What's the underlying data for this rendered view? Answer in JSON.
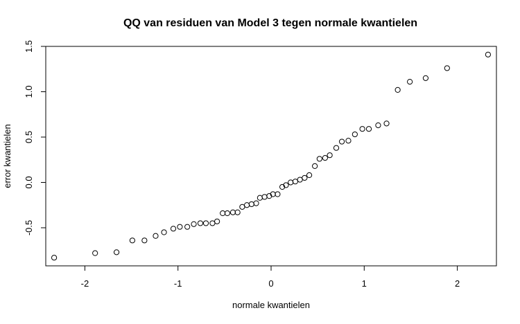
{
  "chart_data": {
    "type": "scatter",
    "title": "QQ van residuen van Model 3 tegen normale kwantielen",
    "xlabel": "normale kwantielen",
    "ylabel": "error kwantielen",
    "xlim": [
      -2.42,
      2.42
    ],
    "ylim": [
      -0.92,
      1.5
    ],
    "xticks": [
      -2,
      -1,
      0,
      1,
      2
    ],
    "yticks": [
      -0.5,
      0.0,
      0.5,
      1.0,
      1.5
    ],
    "xtick_labels": [
      "-2",
      "-1",
      "0",
      "1",
      "2"
    ],
    "ytick_labels": [
      "-0.5",
      "0.0",
      "0.5",
      "1.0",
      "1.5"
    ],
    "grid": false,
    "points": [
      {
        "x": -2.33,
        "y": -0.83
      },
      {
        "x": -1.89,
        "y": -0.78
      },
      {
        "x": -1.66,
        "y": -0.77
      },
      {
        "x": -1.49,
        "y": -0.64
      },
      {
        "x": -1.36,
        "y": -0.64
      },
      {
        "x": -1.24,
        "y": -0.59
      },
      {
        "x": -1.15,
        "y": -0.55
      },
      {
        "x": -1.05,
        "y": -0.51
      },
      {
        "x": -0.98,
        "y": -0.49
      },
      {
        "x": -0.9,
        "y": -0.49
      },
      {
        "x": -0.83,
        "y": -0.46
      },
      {
        "x": -0.76,
        "y": -0.45
      },
      {
        "x": -0.7,
        "y": -0.45
      },
      {
        "x": -0.63,
        "y": -0.45
      },
      {
        "x": -0.58,
        "y": -0.43
      },
      {
        "x": -0.52,
        "y": -0.34
      },
      {
        "x": -0.47,
        "y": -0.34
      },
      {
        "x": -0.41,
        "y": -0.33
      },
      {
        "x": -0.36,
        "y": -0.33
      },
      {
        "x": -0.31,
        "y": -0.27
      },
      {
        "x": -0.26,
        "y": -0.25
      },
      {
        "x": -0.21,
        "y": -0.24
      },
      {
        "x": -0.16,
        "y": -0.23
      },
      {
        "x": -0.12,
        "y": -0.17
      },
      {
        "x": -0.07,
        "y": -0.16
      },
      {
        "x": -0.02,
        "y": -0.15
      },
      {
        "x": 0.02,
        "y": -0.13
      },
      {
        "x": 0.07,
        "y": -0.13
      },
      {
        "x": 0.12,
        "y": -0.05
      },
      {
        "x": 0.16,
        "y": -0.03
      },
      {
        "x": 0.21,
        "y": 0.0
      },
      {
        "x": 0.26,
        "y": 0.01
      },
      {
        "x": 0.31,
        "y": 0.03
      },
      {
        "x": 0.36,
        "y": 0.05
      },
      {
        "x": 0.41,
        "y": 0.08
      },
      {
        "x": 0.47,
        "y": 0.18
      },
      {
        "x": 0.52,
        "y": 0.26
      },
      {
        "x": 0.58,
        "y": 0.27
      },
      {
        "x": 0.63,
        "y": 0.3
      },
      {
        "x": 0.7,
        "y": 0.38
      },
      {
        "x": 0.76,
        "y": 0.45
      },
      {
        "x": 0.83,
        "y": 0.46
      },
      {
        "x": 0.9,
        "y": 0.53
      },
      {
        "x": 0.98,
        "y": 0.59
      },
      {
        "x": 1.05,
        "y": 0.59
      },
      {
        "x": 1.15,
        "y": 0.63
      },
      {
        "x": 1.24,
        "y": 0.65
      },
      {
        "x": 1.36,
        "y": 1.02
      },
      {
        "x": 1.49,
        "y": 1.11
      },
      {
        "x": 1.66,
        "y": 1.15
      },
      {
        "x": 1.89,
        "y": 1.26
      },
      {
        "x": 2.33,
        "y": 1.41
      }
    ]
  }
}
